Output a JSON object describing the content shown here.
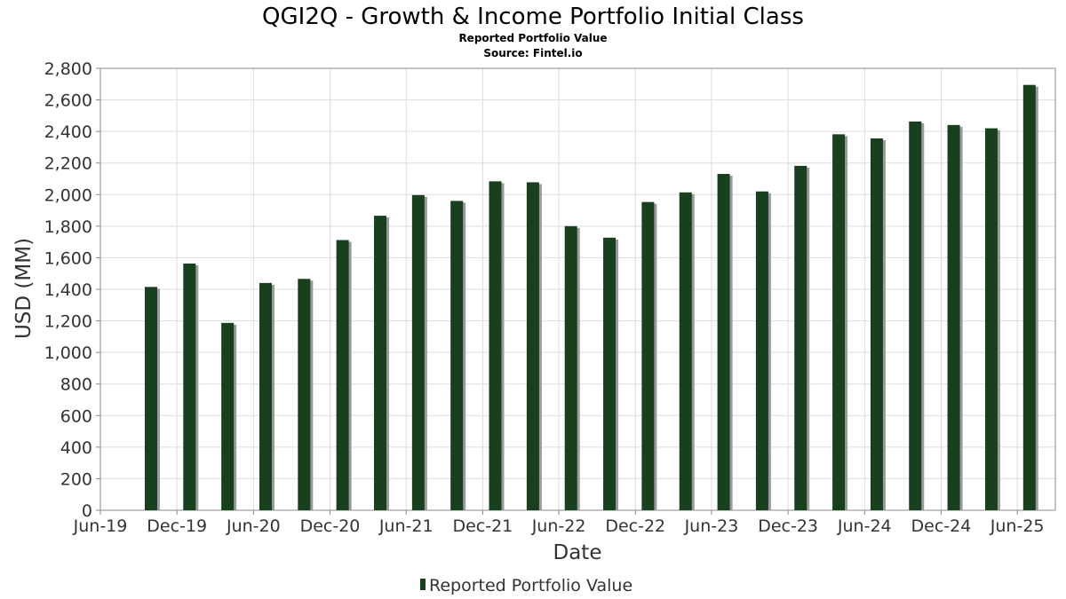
{
  "chart_data": {
    "type": "bar",
    "title": "QGI2Q - Growth & Income Portfolio Initial Class",
    "subtitle": "Reported Portfolio Value",
    "source": "Source: Fintel.io",
    "xlabel": "Date",
    "ylabel": "USD (MM)",
    "ylim": [
      0,
      2800
    ],
    "y_ticks": [
      0,
      200,
      400,
      600,
      800,
      1000,
      1200,
      1400,
      1600,
      1800,
      2000,
      2200,
      2400,
      2600,
      2800
    ],
    "y_tick_labels": [
      "0",
      "200",
      "400",
      "600",
      "800",
      "1,000",
      "1,200",
      "1,400",
      "1,600",
      "1,800",
      "2,000",
      "2,200",
      "2,400",
      "2,600",
      "2,800"
    ],
    "x_range": [
      "2019-06-01",
      "2025-08-31"
    ],
    "x_ticks": [
      {
        "date": "2019-06-01",
        "label": "Jun-19"
      },
      {
        "date": "2019-12-01",
        "label": "Dec-19"
      },
      {
        "date": "2020-06-01",
        "label": "Jun-20"
      },
      {
        "date": "2020-12-01",
        "label": "Dec-20"
      },
      {
        "date": "2021-06-01",
        "label": "Jun-21"
      },
      {
        "date": "2021-12-01",
        "label": "Dec-21"
      },
      {
        "date": "2022-06-01",
        "label": "Jun-22"
      },
      {
        "date": "2022-12-01",
        "label": "Dec-22"
      },
      {
        "date": "2023-06-01",
        "label": "Jun-23"
      },
      {
        "date": "2023-12-01",
        "label": "Dec-23"
      },
      {
        "date": "2024-06-01",
        "label": "Jun-24"
      },
      {
        "date": "2024-12-01",
        "label": "Dec-24"
      },
      {
        "date": "2025-06-01",
        "label": "Jun-25"
      }
    ],
    "grid": true,
    "legend": {
      "position": "bottom-center",
      "entries": [
        "Reported Portfolio Value"
      ]
    },
    "series": [
      {
        "name": "Reported Portfolio Value",
        "color": "#18401e",
        "points": [
          {
            "x": "2019-09-30",
            "y": 1415
          },
          {
            "x": "2019-12-31",
            "y": 1563
          },
          {
            "x": "2020-03-31",
            "y": 1187
          },
          {
            "x": "2020-06-30",
            "y": 1440
          },
          {
            "x": "2020-09-30",
            "y": 1466
          },
          {
            "x": "2020-12-31",
            "y": 1712
          },
          {
            "x": "2021-03-31",
            "y": 1866
          },
          {
            "x": "2021-06-30",
            "y": 1997
          },
          {
            "x": "2021-09-30",
            "y": 1960
          },
          {
            "x": "2021-12-31",
            "y": 2084
          },
          {
            "x": "2022-03-31",
            "y": 2078
          },
          {
            "x": "2022-06-30",
            "y": 1800
          },
          {
            "x": "2022-09-30",
            "y": 1727
          },
          {
            "x": "2022-12-31",
            "y": 1953
          },
          {
            "x": "2023-03-31",
            "y": 2014
          },
          {
            "x": "2023-06-30",
            "y": 2131
          },
          {
            "x": "2023-09-30",
            "y": 2020
          },
          {
            "x": "2023-12-31",
            "y": 2182
          },
          {
            "x": "2024-03-31",
            "y": 2382
          },
          {
            "x": "2024-06-30",
            "y": 2356
          },
          {
            "x": "2024-09-30",
            "y": 2463
          },
          {
            "x": "2024-12-31",
            "y": 2441
          },
          {
            "x": "2025-03-31",
            "y": 2420
          },
          {
            "x": "2025-06-30",
            "y": 2695
          }
        ]
      }
    ]
  }
}
